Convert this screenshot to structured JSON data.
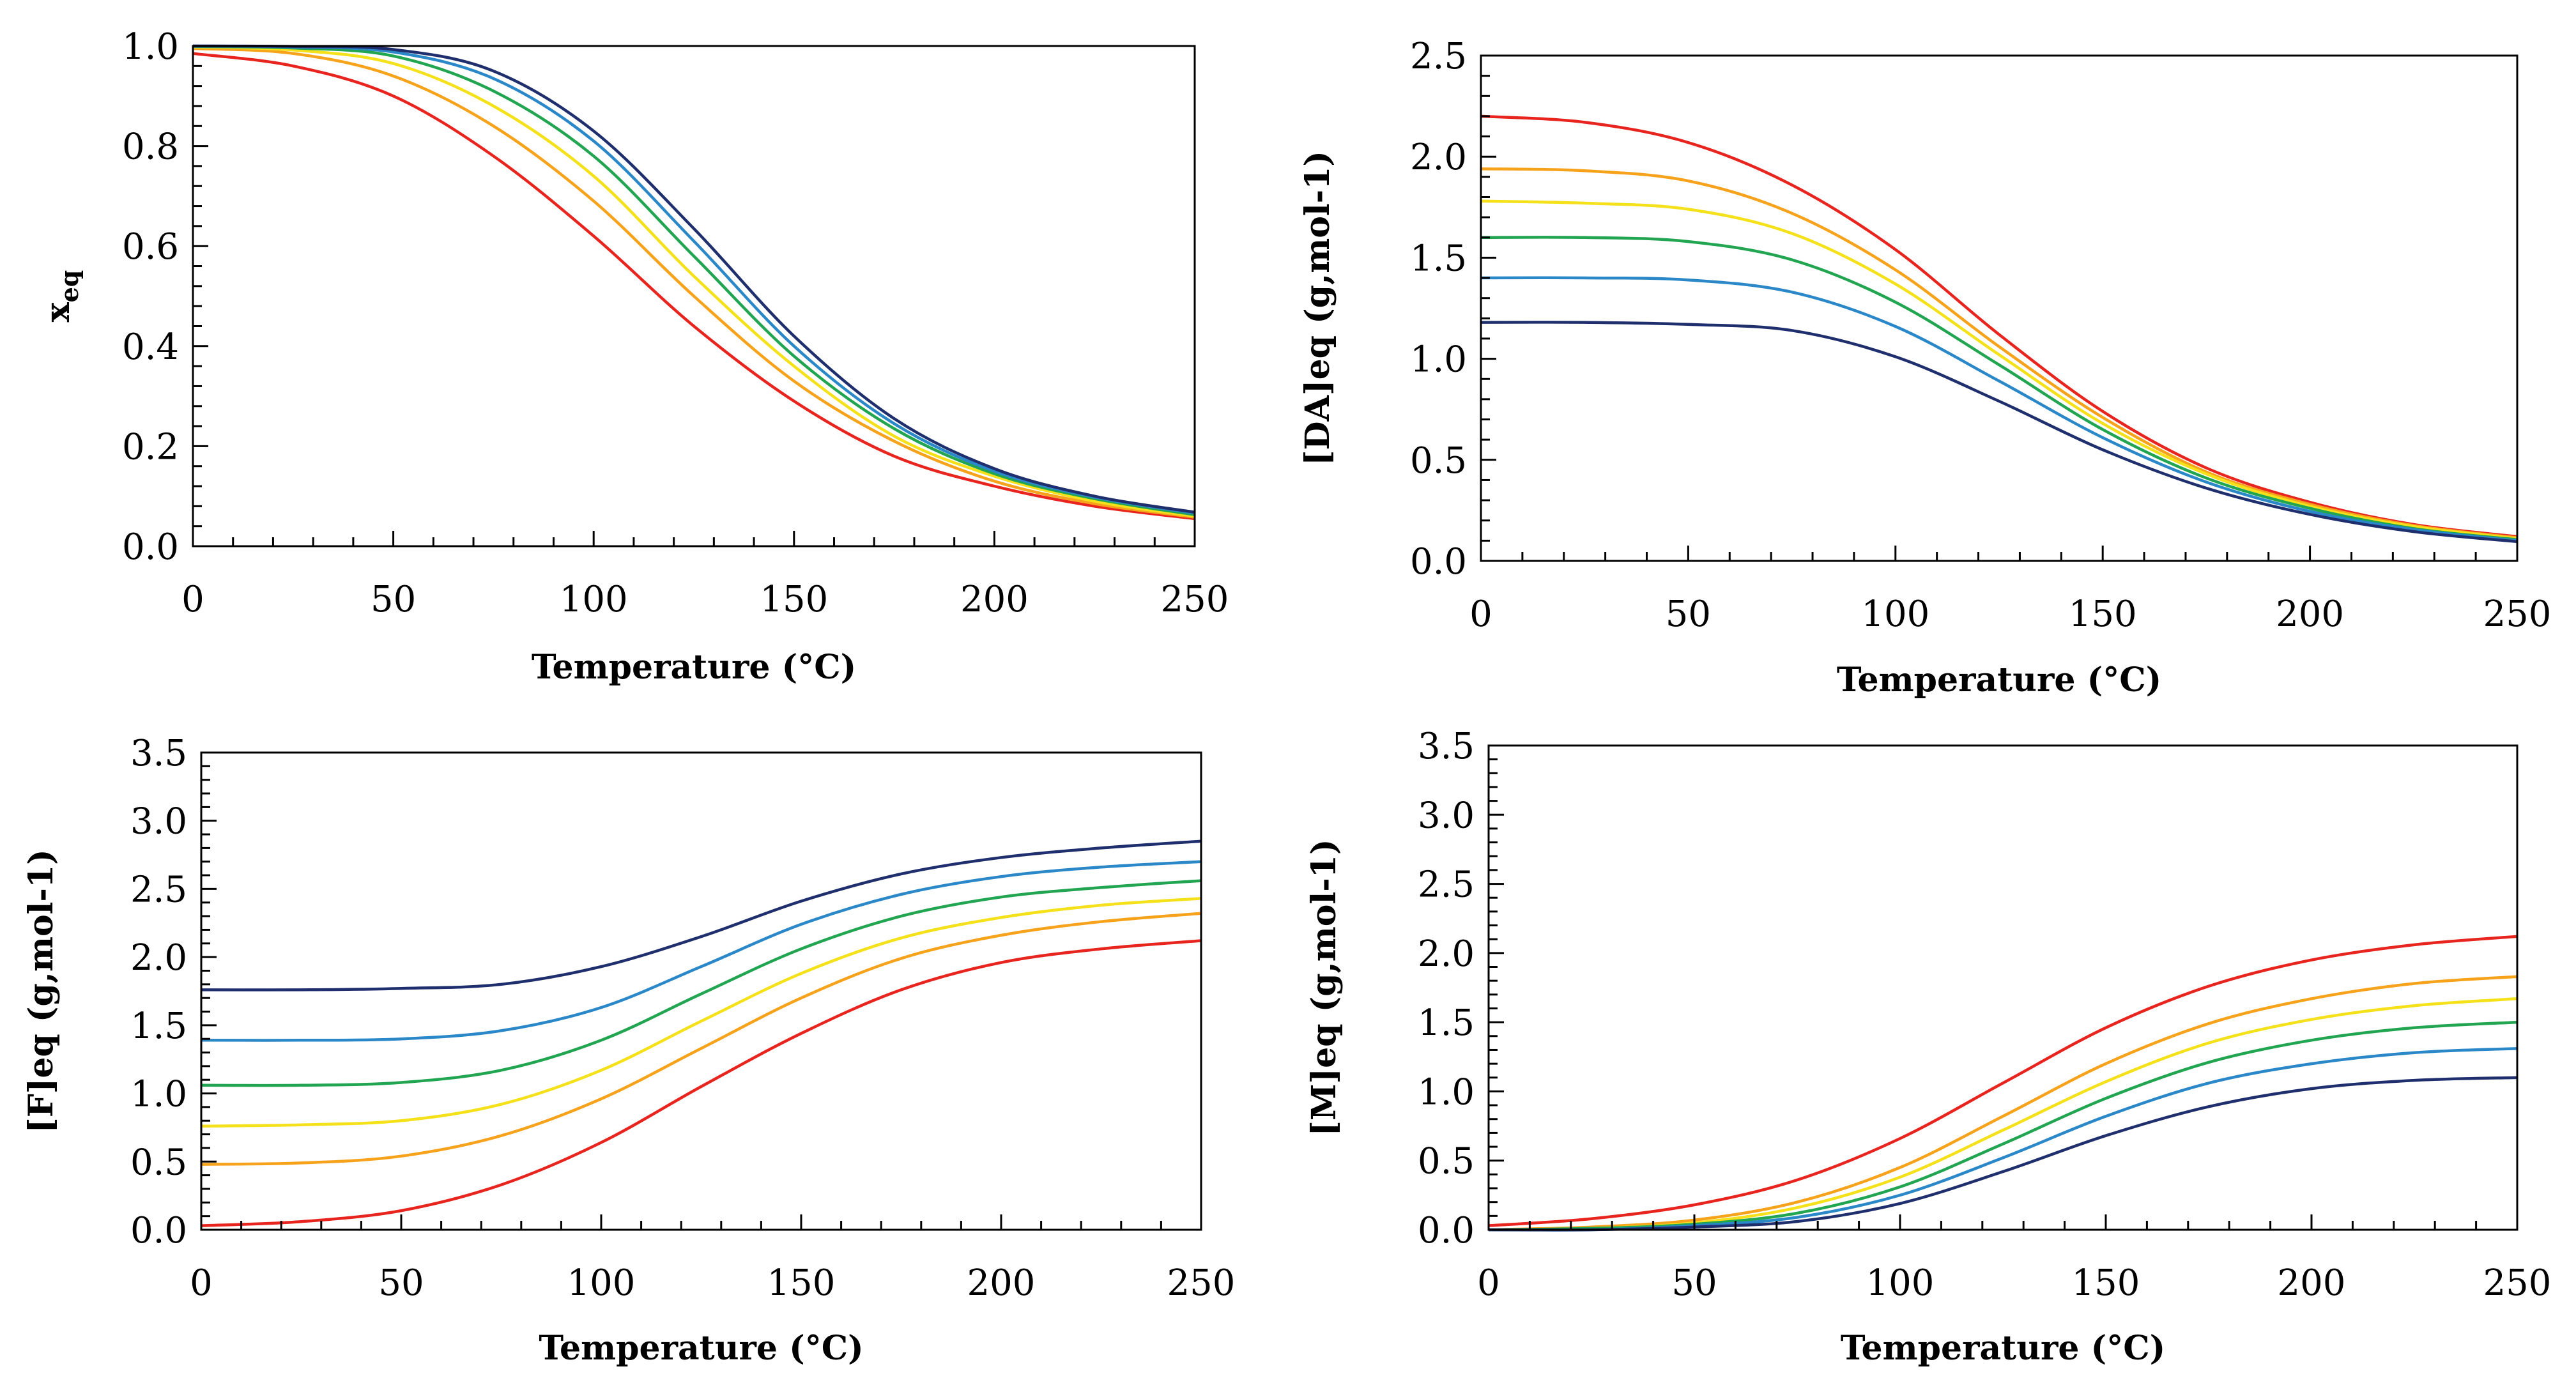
{
  "chart_data": [
    {
      "type": "line",
      "id": "panel-xeq",
      "title": "",
      "xlabel": "Temperature (°C)",
      "ylabel": "x",
      "ylabel_sub": "eq",
      "xlim": [
        0,
        250
      ],
      "ylim": [
        0,
        1.0
      ],
      "xticks": [
        "0",
        "50",
        "100",
        "150",
        "200",
        "250"
      ],
      "yticks": [
        "0.0",
        "0.2",
        "0.4",
        "0.6",
        "0.8",
        "1.0"
      ],
      "x": [
        0,
        25,
        50,
        75,
        100,
        125,
        150,
        175,
        200,
        225,
        250
      ],
      "series": [
        {
          "color": "#e8241f",
          "values": [
            0.985,
            0.96,
            0.9,
            0.78,
            0.62,
            0.44,
            0.29,
            0.18,
            0.12,
            0.08,
            0.055
          ]
        },
        {
          "color": "#f6a31b",
          "values": [
            0.995,
            0.985,
            0.94,
            0.84,
            0.69,
            0.5,
            0.33,
            0.21,
            0.13,
            0.085,
            0.058
          ]
        },
        {
          "color": "#f4e11a",
          "values": [
            0.998,
            0.992,
            0.965,
            0.88,
            0.74,
            0.54,
            0.36,
            0.22,
            0.14,
            0.09,
            0.06
          ]
        },
        {
          "color": "#21a550",
          "values": [
            0.999,
            0.996,
            0.98,
            0.91,
            0.78,
            0.58,
            0.38,
            0.235,
            0.145,
            0.095,
            0.063
          ]
        },
        {
          "color": "#2b88c8",
          "values": [
            1.0,
            0.998,
            0.988,
            0.935,
            0.81,
            0.61,
            0.4,
            0.245,
            0.15,
            0.098,
            0.066
          ]
        },
        {
          "color": "#1f2f6e",
          "values": [
            1.0,
            0.999,
            0.993,
            0.95,
            0.83,
            0.635,
            0.42,
            0.255,
            0.155,
            0.1,
            0.068
          ]
        }
      ]
    },
    {
      "type": "line",
      "id": "panel-da",
      "title": "",
      "xlabel": "Temperature (°C)",
      "ylabel": "[DA]eq (g,mol-1)",
      "xlim": [
        0,
        250
      ],
      "ylim": [
        0,
        2.5
      ],
      "xticks": [
        "0",
        "50",
        "100",
        "150",
        "200",
        "250"
      ],
      "yticks": [
        "0.0",
        "0.5",
        "1.0",
        "1.5",
        "2.0",
        "2.5"
      ],
      "x": [
        0,
        25,
        50,
        75,
        100,
        125,
        150,
        175,
        200,
        225,
        250
      ],
      "series": [
        {
          "color": "#e8241f",
          "values": [
            2.2,
            2.17,
            2.07,
            1.86,
            1.54,
            1.12,
            0.74,
            0.46,
            0.29,
            0.18,
            0.12
          ]
        },
        {
          "color": "#f6a31b",
          "values": [
            1.94,
            1.93,
            1.88,
            1.72,
            1.44,
            1.06,
            0.71,
            0.44,
            0.28,
            0.175,
            0.115
          ]
        },
        {
          "color": "#f4e11a",
          "values": [
            1.78,
            1.77,
            1.74,
            1.62,
            1.37,
            1.02,
            0.68,
            0.43,
            0.27,
            0.17,
            0.11
          ]
        },
        {
          "color": "#21a550",
          "values": [
            1.6,
            1.6,
            1.58,
            1.49,
            1.28,
            0.97,
            0.65,
            0.41,
            0.26,
            0.16,
            0.105
          ]
        },
        {
          "color": "#2b88c8",
          "values": [
            1.4,
            1.4,
            1.39,
            1.33,
            1.16,
            0.89,
            0.61,
            0.39,
            0.245,
            0.155,
            0.1
          ]
        },
        {
          "color": "#1f2f6e",
          "values": [
            1.18,
            1.18,
            1.17,
            1.14,
            1.01,
            0.79,
            0.55,
            0.36,
            0.23,
            0.145,
            0.095
          ]
        }
      ]
    },
    {
      "type": "line",
      "id": "panel-f",
      "title": "",
      "xlabel": "Temperature (°C)",
      "ylabel": "[F]eq (g,mol-1)",
      "xlim": [
        0,
        250
      ],
      "ylim": [
        0,
        3.5
      ],
      "xticks": [
        "0",
        "50",
        "100",
        "150",
        "200",
        "250"
      ],
      "yticks": [
        "0.0",
        "0.5",
        "1.0",
        "1.5",
        "2.0",
        "2.5",
        "3.0",
        "3.5"
      ],
      "x": [
        0,
        25,
        50,
        75,
        100,
        125,
        150,
        175,
        200,
        225,
        250
      ],
      "series": [
        {
          "color": "#e8241f",
          "values": [
            0.03,
            0.06,
            0.14,
            0.33,
            0.64,
            1.05,
            1.44,
            1.76,
            1.96,
            2.06,
            2.12
          ]
        },
        {
          "color": "#f6a31b",
          "values": [
            0.48,
            0.49,
            0.54,
            0.69,
            0.96,
            1.33,
            1.7,
            1.99,
            2.16,
            2.26,
            2.32
          ]
        },
        {
          "color": "#f4e11a",
          "values": [
            0.76,
            0.77,
            0.8,
            0.92,
            1.17,
            1.53,
            1.88,
            2.14,
            2.29,
            2.38,
            2.43
          ]
        },
        {
          "color": "#21a550",
          "values": [
            1.06,
            1.06,
            1.08,
            1.17,
            1.39,
            1.73,
            2.06,
            2.3,
            2.44,
            2.51,
            2.56
          ]
        },
        {
          "color": "#2b88c8",
          "values": [
            1.39,
            1.39,
            1.4,
            1.46,
            1.63,
            1.93,
            2.24,
            2.46,
            2.59,
            2.66,
            2.7
          ]
        },
        {
          "color": "#1f2f6e",
          "values": [
            1.76,
            1.76,
            1.77,
            1.8,
            1.93,
            2.15,
            2.41,
            2.61,
            2.73,
            2.8,
            2.85
          ]
        }
      ]
    },
    {
      "type": "line",
      "id": "panel-m",
      "title": "",
      "xlabel": "Temperature (°C)",
      "ylabel": "[M]eq (g,mol-1)",
      "xlim": [
        0,
        250
      ],
      "ylim": [
        0,
        3.5
      ],
      "xticks": [
        "0",
        "50",
        "100",
        "150",
        "200",
        "250"
      ],
      "yticks": [
        "0.0",
        "0.5",
        "1.0",
        "1.5",
        "2.0",
        "2.5",
        "3.0",
        "3.5"
      ],
      "x": [
        0,
        25,
        50,
        75,
        100,
        125,
        150,
        175,
        200,
        225,
        250
      ],
      "series": [
        {
          "color": "#e8241f",
          "values": [
            0.03,
            0.08,
            0.18,
            0.36,
            0.66,
            1.06,
            1.46,
            1.76,
            1.95,
            2.06,
            2.12
          ]
        },
        {
          "color": "#f6a31b",
          "values": [
            0.0,
            0.02,
            0.07,
            0.2,
            0.45,
            0.82,
            1.2,
            1.49,
            1.67,
            1.78,
            1.83
          ]
        },
        {
          "color": "#f4e11a",
          "values": [
            0.0,
            0.01,
            0.05,
            0.16,
            0.38,
            0.72,
            1.07,
            1.35,
            1.52,
            1.62,
            1.67
          ]
        },
        {
          "color": "#21a550",
          "values": [
            0.0,
            0.01,
            0.04,
            0.12,
            0.31,
            0.62,
            0.95,
            1.21,
            1.37,
            1.46,
            1.5
          ]
        },
        {
          "color": "#2b88c8",
          "values": [
            0.0,
            0.0,
            0.03,
            0.09,
            0.25,
            0.52,
            0.82,
            1.06,
            1.2,
            1.28,
            1.31
          ]
        },
        {
          "color": "#1f2f6e",
          "values": [
            0.0,
            0.0,
            0.02,
            0.06,
            0.19,
            0.42,
            0.68,
            0.89,
            1.02,
            1.08,
            1.1
          ]
        }
      ]
    }
  ]
}
